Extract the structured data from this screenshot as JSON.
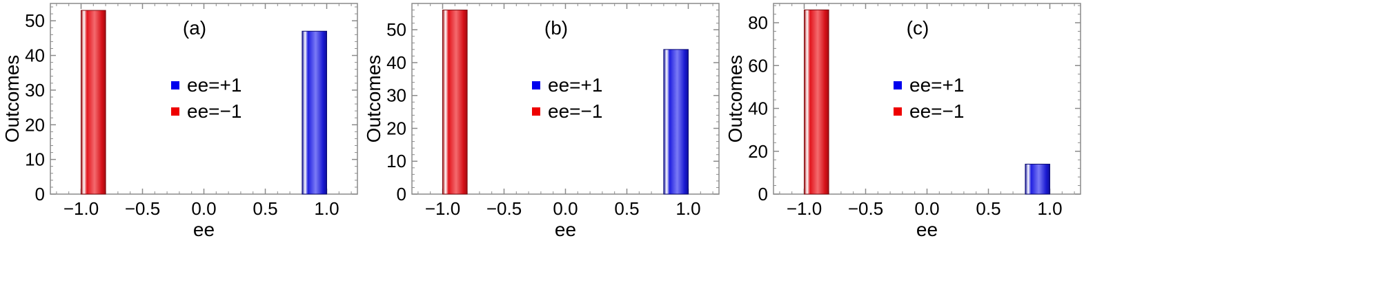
{
  "chart_data": [
    {
      "type": "bar",
      "panel_label": "(a)",
      "xlabel": "ee",
      "ylabel": "Outcomes",
      "xlim": [
        -1.25,
        1.25
      ],
      "ylim": [
        0,
        55
      ],
      "xticks": [
        "-1.0",
        "-0.5",
        "0.0",
        "0.5",
        "1.0"
      ],
      "yticks": [
        "0",
        "10",
        "20",
        "30",
        "40",
        "50"
      ],
      "bars": [
        {
          "x_start": -1.0,
          "x_end": -0.8,
          "value": 53,
          "color": "#e0141e",
          "series": "ee=-1"
        },
        {
          "x_start": 0.8,
          "x_end": 1.0,
          "value": 47,
          "color": "#1a1adc",
          "series": "ee=+1"
        }
      ],
      "legend": [
        {
          "label": "ee=+1",
          "color": "#0000ee"
        },
        {
          "label": "ee=−1",
          "color": "#ee0000"
        }
      ],
      "grid": false
    },
    {
      "type": "bar",
      "panel_label": "(b)",
      "xlabel": "ee",
      "ylabel": "Outcomes",
      "xlim": [
        -1.25,
        1.25
      ],
      "ylim": [
        0,
        58
      ],
      "xticks": [
        "-1.0",
        "-0.5",
        "0.0",
        "0.5",
        "1.0"
      ],
      "yticks": [
        "0",
        "10",
        "20",
        "30",
        "40",
        "50"
      ],
      "bars": [
        {
          "x_start": -1.0,
          "x_end": -0.8,
          "value": 56,
          "color": "#e0141e",
          "series": "ee=-1"
        },
        {
          "x_start": 0.8,
          "x_end": 1.0,
          "value": 44,
          "color": "#1a1adc",
          "series": "ee=+1"
        }
      ],
      "legend": [
        {
          "label": "ee=+1",
          "color": "#0000ee"
        },
        {
          "label": "ee=−1",
          "color": "#ee0000"
        }
      ],
      "grid": false
    },
    {
      "type": "bar",
      "panel_label": "(c)",
      "xlabel": "ee",
      "ylabel": "Outcomes",
      "xlim": [
        -1.25,
        1.25
      ],
      "ylim": [
        0,
        89
      ],
      "xticks": [
        "-1.0",
        "-0.5",
        "0.0",
        "0.5",
        "1.0"
      ],
      "yticks": [
        "0",
        "20",
        "40",
        "60",
        "80"
      ],
      "bars": [
        {
          "x_start": -1.0,
          "x_end": -0.8,
          "value": 86,
          "color": "#e0141e",
          "series": "ee=-1"
        },
        {
          "x_start": 0.8,
          "x_end": 1.0,
          "value": 14,
          "color": "#1a1adc",
          "series": "ee=+1"
        }
      ],
      "legend": [
        {
          "label": "ee=+1",
          "color": "#0000ee"
        },
        {
          "label": "ee=−1",
          "color": "#ee0000"
        }
      ],
      "grid": false
    }
  ]
}
